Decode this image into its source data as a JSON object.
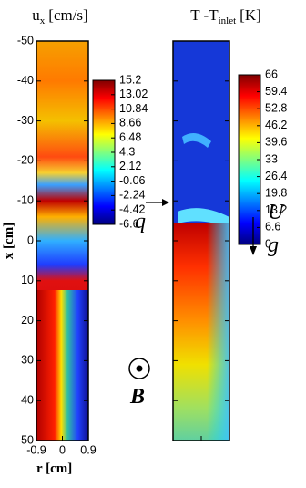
{
  "y_axis": {
    "label": "x [cm]",
    "lim": [
      -50,
      50
    ],
    "ticks": [
      -50,
      -40,
      -30,
      -20,
      -10,
      0,
      10,
      20,
      30,
      40,
      50
    ]
  },
  "x_axis": {
    "label": "r [cm]",
    "lim": [
      -0.9,
      0.9
    ],
    "ticks": [
      -0.9,
      0,
      0.9
    ]
  },
  "panels": [
    {
      "title": "u",
      "title_sub": "x",
      "title_unit": "[cm/s]",
      "colorbar": {
        "lim": [
          -6.6,
          15.2
        ],
        "ticks": [
          15.2,
          13.02,
          10.84,
          8.66,
          6.48,
          4.3,
          2.12,
          -0.06,
          -2.24,
          -4.42,
          -6.6
        ]
      }
    },
    {
      "title": "T -T",
      "title_sub": "inlet",
      "title_unit": "[K]",
      "colorbar": {
        "lim": [
          0,
          66
        ],
        "ticks": [
          66,
          59.4,
          52.8,
          46.2,
          39.6,
          33,
          26.4,
          19.8,
          13.2,
          6.6,
          0
        ]
      }
    }
  ],
  "annotations": {
    "q": "q",
    "U": "U",
    "g": "g",
    "B": "B"
  }
}
